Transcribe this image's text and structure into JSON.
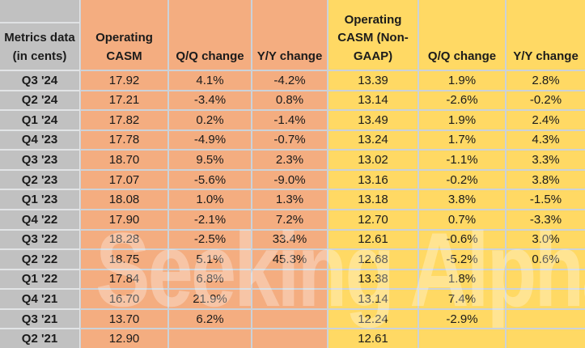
{
  "header": {
    "metrics_label": "Metrics data\n(in cents)",
    "gaap": {
      "casm": "Operating\nCASM",
      "qq": "Q/Q change",
      "yy": "Y/Y change"
    },
    "non_gaap": {
      "casm": "Operating\nCASM (Non-\nGAAP)",
      "qq": "Q/Q change",
      "yy": "Y/Y change"
    }
  },
  "watermark": {
    "text": "Seeking Alpha",
    "symbol": "α"
  },
  "colors": {
    "label_gray": "#c1c1c1",
    "gaap_orange": "#f4ad80",
    "non_gaap_yellow": "#ffd964",
    "gridline": "#cbd2d9",
    "text": "#1b1b1b"
  },
  "chart_data": {
    "type": "table",
    "columns": [
      "Metrics data (in cents)",
      "Operating CASM",
      "Q/Q change",
      "Y/Y change",
      "Operating CASM (Non-GAAP)",
      "Q/Q change",
      "Y/Y change"
    ],
    "rows": [
      {
        "quarter": "Q3 '24",
        "op_casm": "17.92",
        "qq_change": "4.1%",
        "yy_change": "-4.2%",
        "ng_casm": "13.39",
        "ng_qq_change": "1.9%",
        "ng_yy_change": "2.8%"
      },
      {
        "quarter": "Q2 '24",
        "op_casm": "17.21",
        "qq_change": "-3.4%",
        "yy_change": "0.8%",
        "ng_casm": "13.14",
        "ng_qq_change": "-2.6%",
        "ng_yy_change": "-0.2%"
      },
      {
        "quarter": "Q1 '24",
        "op_casm": "17.82",
        "qq_change": "0.2%",
        "yy_change": "-1.4%",
        "ng_casm": "13.49",
        "ng_qq_change": "1.9%",
        "ng_yy_change": "2.4%"
      },
      {
        "quarter": "Q4 '23",
        "op_casm": "17.78",
        "qq_change": "-4.9%",
        "yy_change": "-0.7%",
        "ng_casm": "13.24",
        "ng_qq_change": "1.7%",
        "ng_yy_change": "4.3%"
      },
      {
        "quarter": "Q3 '23",
        "op_casm": "18.70",
        "qq_change": "9.5%",
        "yy_change": "2.3%",
        "ng_casm": "13.02",
        "ng_qq_change": "-1.1%",
        "ng_yy_change": "3.3%"
      },
      {
        "quarter": "Q2 '23",
        "op_casm": "17.07",
        "qq_change": "-5.6%",
        "yy_change": "-9.0%",
        "ng_casm": "13.16",
        "ng_qq_change": "-0.2%",
        "ng_yy_change": "3.8%"
      },
      {
        "quarter": "Q1 '23",
        "op_casm": "18.08",
        "qq_change": "1.0%",
        "yy_change": "1.3%",
        "ng_casm": "13.18",
        "ng_qq_change": "3.8%",
        "ng_yy_change": "-1.5%"
      },
      {
        "quarter": "Q4 '22",
        "op_casm": "17.90",
        "qq_change": "-2.1%",
        "yy_change": "7.2%",
        "ng_casm": "12.70",
        "ng_qq_change": "0.7%",
        "ng_yy_change": "-3.3%"
      },
      {
        "quarter": "Q3 '22",
        "op_casm": "18.28",
        "qq_change": "-2.5%",
        "yy_change": "33.4%",
        "ng_casm": "12.61",
        "ng_qq_change": "-0.6%",
        "ng_yy_change": "3.0%"
      },
      {
        "quarter": "Q2 '22",
        "op_casm": "18.75",
        "qq_change": "5.1%",
        "yy_change": "45.3%",
        "ng_casm": "12.68",
        "ng_qq_change": "-5.2%",
        "ng_yy_change": "0.6%"
      },
      {
        "quarter": "Q1 '22",
        "op_casm": "17.84",
        "qq_change": "6.8%",
        "yy_change": "",
        "ng_casm": "13.38",
        "ng_qq_change": "1.8%",
        "ng_yy_change": ""
      },
      {
        "quarter": "Q4 '21",
        "op_casm": "16.70",
        "qq_change": "21.9%",
        "yy_change": "",
        "ng_casm": "13.14",
        "ng_qq_change": "7.4%",
        "ng_yy_change": ""
      },
      {
        "quarter": "Q3 '21",
        "op_casm": "13.70",
        "qq_change": "6.2%",
        "yy_change": "",
        "ng_casm": "12.24",
        "ng_qq_change": "-2.9%",
        "ng_yy_change": ""
      },
      {
        "quarter": "Q2 '21",
        "op_casm": "12.90",
        "qq_change": "",
        "yy_change": "",
        "ng_casm": "12.61",
        "ng_qq_change": "",
        "ng_yy_change": ""
      }
    ]
  }
}
